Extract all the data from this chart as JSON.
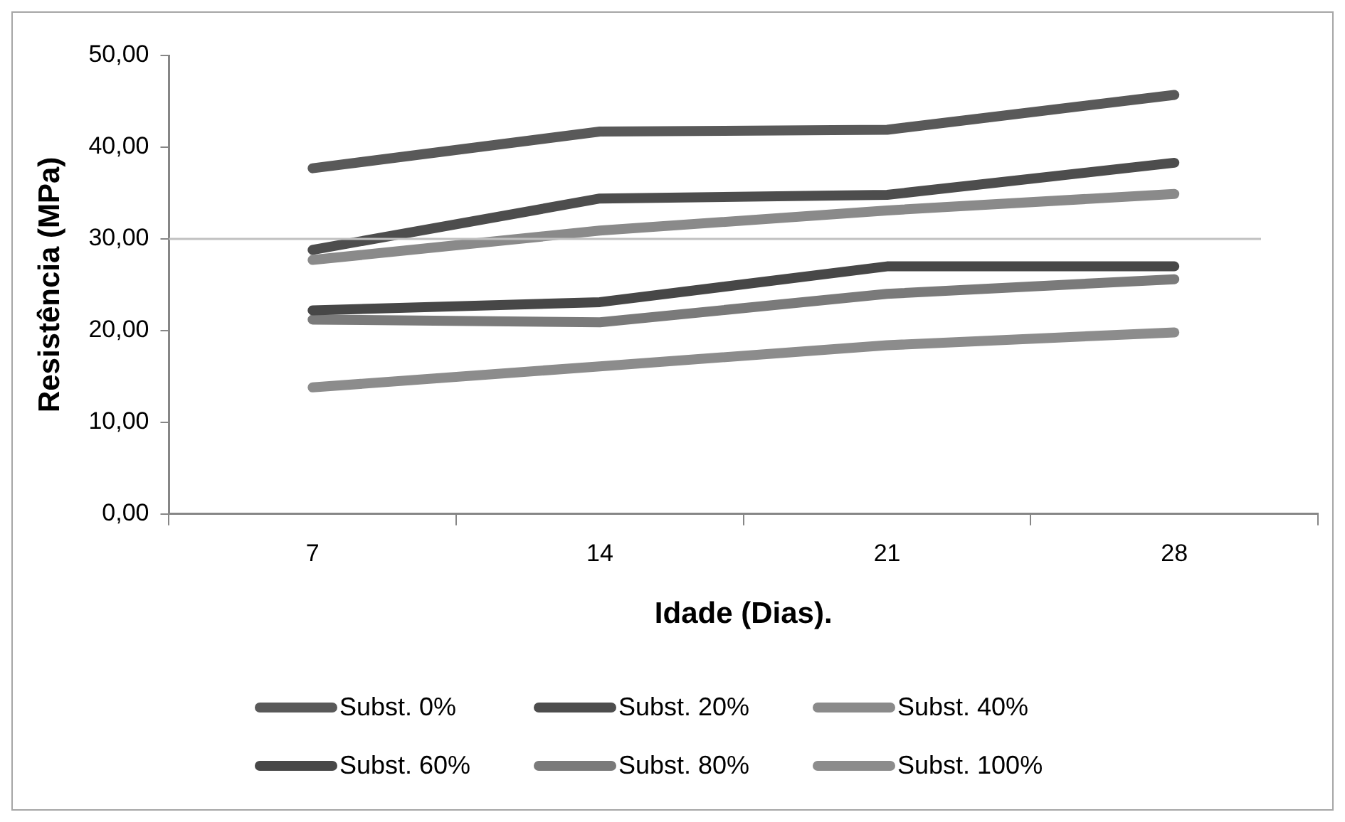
{
  "chart_data": {
    "type": "line",
    "xlabel": "Idade (Dias).",
    "ylabel": "Resistência (MPa)",
    "categories": [
      "7",
      "14",
      "21",
      "28"
    ],
    "series": [
      {
        "name": "Subst. 0%",
        "color": "#595959",
        "values": [
          37.7,
          41.7,
          41.9,
          45.7
        ]
      },
      {
        "name": "Subst. 20%",
        "color": "#4d4d4d",
        "values": [
          28.8,
          34.4,
          34.8,
          38.3
        ]
      },
      {
        "name": "Subst. 40%",
        "color": "#8a8a8a",
        "values": [
          27.7,
          30.9,
          33.1,
          34.9
        ]
      },
      {
        "name": "Subst. 60%",
        "color": "#474747",
        "values": [
          22.2,
          23.1,
          27.0,
          27.0
        ]
      },
      {
        "name": "Subst. 80%",
        "color": "#7a7a7a",
        "values": [
          21.2,
          20.9,
          24.0,
          25.6
        ]
      },
      {
        "name": "Subst. 100%",
        "color": "#8c8c8c",
        "values": [
          13.8,
          16.1,
          18.4,
          19.8
        ]
      }
    ],
    "ylim": [
      0,
      50
    ],
    "yticks": [
      {
        "value": 0,
        "label": "0,00"
      },
      {
        "value": 10,
        "label": "10,00"
      },
      {
        "value": 20,
        "label": "20,00"
      },
      {
        "value": 30,
        "label": "30,00"
      },
      {
        "value": 40,
        "label": "40,00"
      },
      {
        "value": 50,
        "label": "50,00"
      }
    ],
    "ref_lines": [
      {
        "axis": "y",
        "value": 30,
        "color": "#c0c0c0"
      }
    ],
    "grid": false,
    "legend": "bottom",
    "marker": "none",
    "line_style": "solid"
  }
}
